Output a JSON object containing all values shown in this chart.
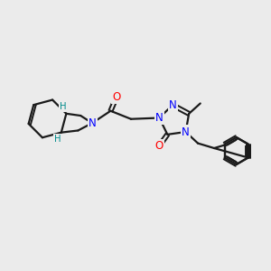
{
  "background_color": "#ebebeb",
  "figsize": [
    3.0,
    3.0
  ],
  "dpi": 100,
  "colors": {
    "C": "#1a1a1a",
    "N": "#0000ff",
    "O": "#ff0000",
    "H": "#008b8b",
    "bond": "#1a1a1a"
  },
  "bond_lw": 1.6,
  "font_size": 8.5
}
